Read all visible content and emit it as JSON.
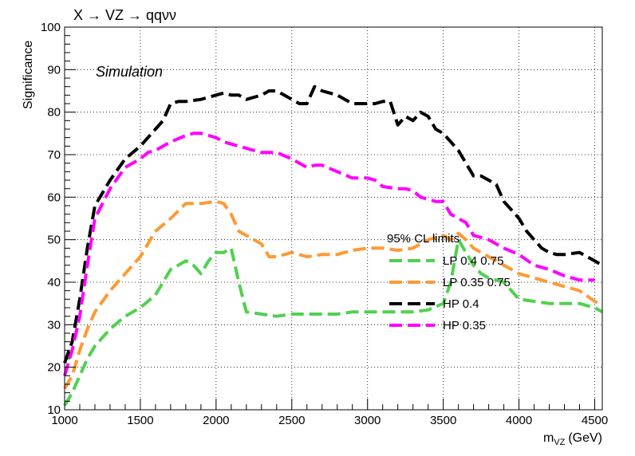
{
  "chart_data": {
    "type": "line",
    "title": "X → VZ → qqνν",
    "annotation": "Simulation",
    "xlabel": "m",
    "xlabel_sub": "VZ",
    "xlabel_unit": "(GeV)",
    "ylabel": "Significance",
    "xlim": [
      1000,
      4550
    ],
    "ylim": [
      10,
      100
    ],
    "xticks": [
      1000,
      1500,
      2000,
      2500,
      3000,
      3500,
      4000,
      4500
    ],
    "yticks": [
      10,
      20,
      30,
      40,
      50,
      60,
      70,
      80,
      90,
      100
    ],
    "grid": true,
    "legend_title": "95% CL limits",
    "legend_position": "center-right",
    "series": [
      {
        "name": "LP 0.4 0.75",
        "color": "#4fd14f",
        "x": [
          1000,
          1050,
          1100,
          1150,
          1200,
          1300,
          1400,
          1500,
          1550,
          1600,
          1650,
          1700,
          1750,
          1800,
          1850,
          1900,
          1950,
          2000,
          2050,
          2100,
          2150,
          2200,
          2300,
          2400,
          2500,
          2600,
          2700,
          2800,
          2900,
          3000,
          3100,
          3200,
          3300,
          3400,
          3500,
          3550,
          3600,
          3650,
          3700,
          3750,
          3800,
          3900,
          4000,
          4100,
          4200,
          4300,
          4400,
          4500,
          4550
        ],
        "y": [
          11,
          14,
          18,
          22,
          25,
          29,
          32,
          34,
          35.5,
          37,
          40,
          43,
          44,
          45,
          44,
          42,
          45,
          47,
          47,
          48,
          40,
          33,
          32.5,
          32,
          32.5,
          32.5,
          32.5,
          32.5,
          33,
          33,
          33,
          33,
          33,
          33.5,
          35,
          40,
          50,
          47,
          44,
          42,
          41,
          40,
          36,
          35.5,
          35,
          35,
          35,
          34,
          33
        ]
      },
      {
        "name": "LP 0.35 0.75",
        "color": "#ff9933",
        "x": [
          1000,
          1050,
          1100,
          1150,
          1200,
          1300,
          1400,
          1500,
          1550,
          1600,
          1700,
          1800,
          1900,
          2000,
          2050,
          2100,
          2150,
          2200,
          2300,
          2350,
          2400,
          2500,
          2600,
          2700,
          2800,
          2900,
          3000,
          3100,
          3200,
          3300,
          3400,
          3500,
          3550,
          3600,
          3650,
          3700,
          3800,
          3900,
          4000,
          4100,
          4200,
          4300,
          4400,
          4500,
          4550
        ],
        "y": [
          15,
          18,
          24,
          29,
          33,
          38,
          42,
          46,
          49,
          52,
          55,
          58.5,
          58.5,
          59,
          58.5,
          56,
          52,
          51,
          49,
          46,
          46,
          47,
          46,
          46.5,
          46.5,
          47.5,
          48,
          48,
          47.5,
          48,
          50,
          51,
          50,
          51.5,
          50,
          48,
          46,
          44,
          42,
          41,
          40,
          39,
          38,
          35.5,
          34.5
        ]
      },
      {
        "name": "HP 0.4",
        "color": "#000000",
        "x": [
          1000,
          1050,
          1100,
          1150,
          1200,
          1300,
          1400,
          1500,
          1550,
          1600,
          1650,
          1700,
          1750,
          1800,
          1900,
          2000,
          2050,
          2100,
          2150,
          2200,
          2300,
          2350,
          2400,
          2450,
          2500,
          2550,
          2600,
          2650,
          2700,
          2750,
          2800,
          2900,
          3000,
          3050,
          3100,
          3150,
          3200,
          3250,
          3300,
          3350,
          3400,
          3450,
          3500,
          3550,
          3600,
          3650,
          3700,
          3750,
          3800,
          3850,
          3900,
          3950,
          4000,
          4050,
          4100,
          4150,
          4200,
          4250,
          4300,
          4400,
          4500,
          4550
        ],
        "y": [
          21,
          26,
          36,
          48,
          58,
          64,
          69,
          72,
          74,
          76,
          78,
          82,
          82.5,
          82.5,
          83,
          84,
          84.5,
          84,
          84,
          83,
          84,
          85,
          85,
          84,
          83,
          82,
          82,
          86,
          85,
          84.5,
          84,
          82,
          82,
          82,
          82.5,
          82.5,
          77,
          79,
          78,
          80,
          79,
          76,
          75,
          73,
          71,
          68,
          65,
          65,
          64,
          63,
          59,
          57,
          55,
          52,
          50,
          48,
          47,
          46.5,
          46.5,
          47,
          45,
          44
        ]
      },
      {
        "name": "HP 0.35",
        "color": "#ff00ff",
        "x": [
          1000,
          1050,
          1100,
          1150,
          1200,
          1300,
          1400,
          1500,
          1550,
          1600,
          1700,
          1800,
          1850,
          1900,
          2000,
          2050,
          2100,
          2150,
          2200,
          2300,
          2350,
          2400,
          2500,
          2600,
          2650,
          2700,
          2800,
          2900,
          3000,
          3050,
          3100,
          3200,
          3250,
          3300,
          3350,
          3400,
          3450,
          3500,
          3550,
          3600,
          3650,
          3700,
          3800,
          3900,
          4000,
          4100,
          4200,
          4300,
          4400,
          4500
        ],
        "y": [
          18,
          24,
          32,
          44,
          55,
          62,
          67,
          69,
          70.5,
          71,
          73,
          74.5,
          75,
          75,
          74,
          73,
          72.5,
          72,
          71.5,
          70.5,
          70.5,
          70.5,
          69,
          67,
          67.5,
          67.5,
          66,
          64.5,
          64.5,
          64,
          62.5,
          62,
          62,
          61.5,
          60,
          59.5,
          59,
          59,
          56,
          55,
          54,
          51,
          50,
          48,
          46.5,
          44,
          43,
          41.5,
          40.5,
          40.5
        ]
      }
    ]
  }
}
